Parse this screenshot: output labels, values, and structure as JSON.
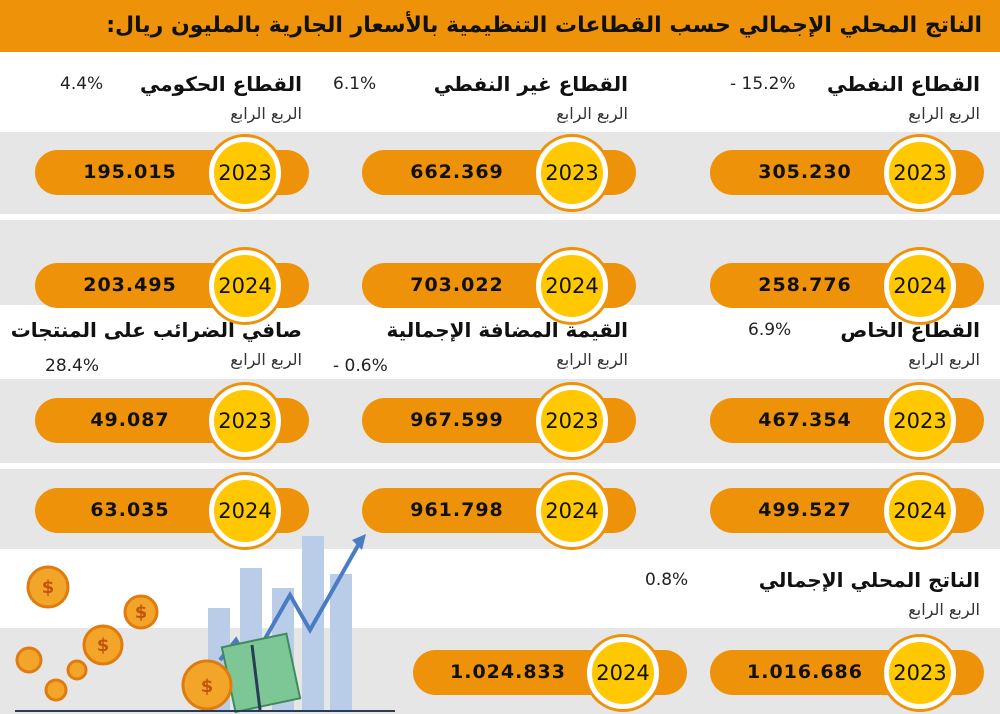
{
  "title": "الناتج المحلي الإجمالي حسب القطاعات التنظيمية بالأسعار الجارية بالمليون ريال:",
  "quarter_label": "الربع الرابع",
  "sections": [
    {
      "name": "القطاع النفطي",
      "change": "- 15.2%",
      "y2023": "2023",
      "v2023": "305.230",
      "y2024": "2024",
      "v2024": "258.776"
    },
    {
      "name": "القطاع غير النفطي",
      "change": "6.1%",
      "y2023": "2023",
      "v2023": "662.369",
      "y2024": "2024",
      "v2024": "703.022"
    },
    {
      "name": "القطاع الحكومي",
      "change": "4.4%",
      "y2023": "2023",
      "v2023": "195.015",
      "y2024": "2024",
      "v2024": "203.495"
    },
    {
      "name": "القطاع الخاص",
      "change": "6.9%",
      "y2023": "2023",
      "v2023": "467.354",
      "y2024": "2024",
      "v2024": "499.527"
    },
    {
      "name": "القيمة المضافة الإجمالية",
      "change": "- 0.6%",
      "y2023": "2023",
      "v2023": "967.599",
      "y2024": "2024",
      "v2024": "961.798"
    },
    {
      "name": "صافي الضرائب على المنتجات",
      "change": "28.4%",
      "y2023": "2023",
      "v2023": "49.087",
      "y2024": "2024",
      "v2024": "63.035"
    },
    {
      "name": "الناتج المحلي الإجمالي",
      "change": "0.8%",
      "y2023": "2023",
      "v2023": "1.016.686",
      "y2024": "2024",
      "v2024": "1.024.833"
    }
  ]
}
